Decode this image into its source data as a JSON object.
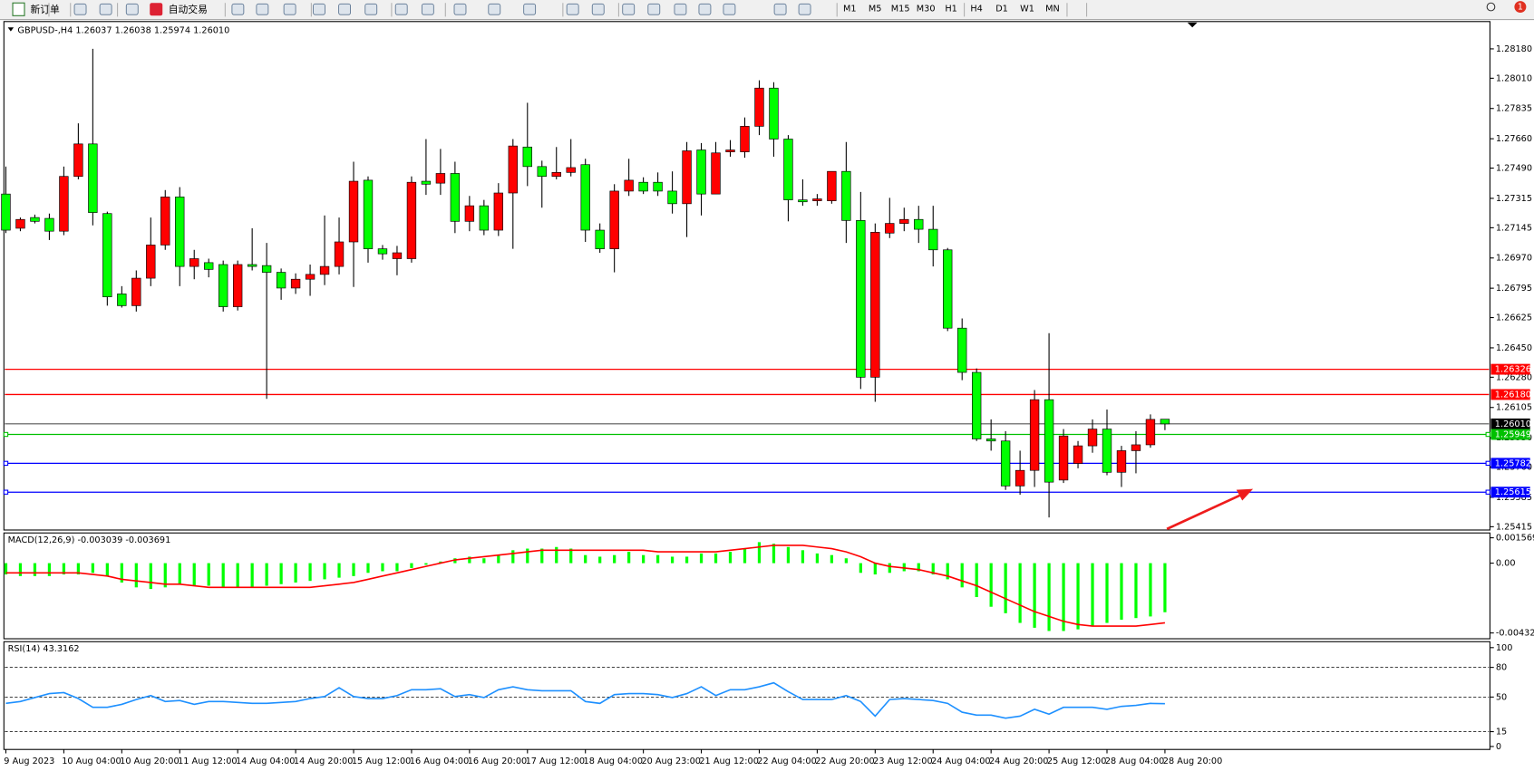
{
  "toolbar": {
    "buttons": [
      "新订单",
      "自动交易"
    ],
    "timeframes": [
      "M1",
      "M5",
      "M15",
      "M30",
      "H1",
      "H4",
      "D1",
      "W1",
      "MN"
    ],
    "badge": "1"
  },
  "chart_data": [
    {
      "type": "candlestick",
      "title": "GBPUSD-,H4  1.26037 1.26038 1.25974 1.26010",
      "categories": [
        "9 Aug 2023",
        null,
        null,
        null,
        "10 Aug 04:00",
        null,
        null,
        null,
        "10 Aug 20:00",
        null,
        null,
        null,
        "11 Aug 12:00",
        null,
        null,
        null,
        "14 Aug 04:00",
        null,
        null,
        null,
        "14 Aug 20:00",
        null,
        null,
        null,
        "15 Aug 12:00",
        null,
        null,
        null,
        "16 Aug 04:00",
        null,
        null,
        null,
        "16 Aug 20:00",
        null,
        null,
        null,
        "17 Aug 12:00",
        null,
        null,
        null,
        "18 Aug 04:00",
        null,
        null,
        null,
        "20 Aug 23:00",
        null,
        null,
        null,
        "21 Aug 12:00",
        null,
        null,
        null,
        "22 Aug 04:00",
        null,
        null,
        null,
        "22 Aug 20:00",
        null,
        null,
        null,
        "23 Aug 12:00",
        null,
        null,
        null,
        "24 Aug 04:00",
        null,
        null,
        null,
        "24 Aug 20:00",
        null,
        null,
        null,
        "25 Aug 12:00",
        null,
        null,
        null,
        "28 Aug 04:00",
        null,
        null,
        null,
        "28 Aug 20:00"
      ],
      "open": [
        1.2734,
        1.27142,
        1.27204,
        1.27199,
        1.27125,
        1.27442,
        1.2763,
        1.27227,
        1.26762,
        1.26694,
        1.26853,
        1.27045,
        1.27323,
        1.26921,
        1.26943,
        1.26932,
        1.26688,
        1.26932,
        1.26926,
        1.26887,
        1.26796,
        1.26847,
        1.26875,
        1.26921,
        1.27063,
        1.2742,
        1.27023,
        1.26966,
        1.26966,
        1.27414,
        1.27403,
        1.27459,
        1.27182,
        1.27272,
        1.27131,
        1.27346,
        1.27612,
        1.27499,
        1.27442,
        1.27465,
        1.2751,
        1.27131,
        1.27023,
        1.27357,
        1.27408,
        1.27408,
        1.27357,
        1.27284,
        1.27595,
        1.2734,
        1.27584,
        1.27584,
        1.27732,
        1.27953,
        1.27658,
        1.27306,
        1.27301,
        1.27301,
        1.27471,
        1.27187,
        1.2628,
        1.27114,
        1.2717,
        1.27193,
        1.27136,
        1.27017,
        1.26564,
        1.26308,
        1.25923,
        1.25911,
        1.25651,
        1.25741,
        1.2615,
        1.25685,
        1.25781,
        1.25883,
        1.2598,
        1.2573,
        1.25855,
        1.25889,
        1.26037
      ],
      "high": [
        1.27499,
        1.27204,
        1.27221,
        1.27227,
        1.27499,
        1.27749,
        1.2818,
        1.27238,
        1.26807,
        1.26898,
        1.27204,
        1.27363,
        1.2738,
        1.27017,
        1.26966,
        1.26955,
        1.26955,
        1.27142,
        1.27057,
        1.26909,
        1.26881,
        1.26932,
        1.27216,
        1.27204,
        1.27527,
        1.27442,
        1.27045,
        1.2704,
        1.27442,
        1.27658,
        1.27601,
        1.27527,
        1.27329,
        1.27306,
        1.27403,
        1.27658,
        1.27868,
        1.27533,
        1.27612,
        1.27658,
        1.27544,
        1.2717,
        1.27397,
        1.27544,
        1.27437,
        1.27465,
        1.27471,
        1.27641,
        1.27635,
        1.27641,
        1.27652,
        1.27783,
        1.27998,
        1.27987,
        1.27681,
        1.27425,
        1.2734,
        1.27471,
        1.27641,
        1.27352,
        1.2717,
        1.27318,
        1.27261,
        1.27272,
        1.27272,
        1.27028,
        1.2662,
        1.26331,
        1.26036,
        1.25968,
        1.25855,
        1.26206,
        1.26535,
        1.2598,
        1.25911,
        1.26036,
        1.26093,
        1.25883,
        1.25968,
        1.26065,
        1.26038
      ],
      "low": [
        1.27114,
        1.27125,
        1.2717,
        1.27074,
        1.27102,
        1.27425,
        1.27159,
        1.26694,
        1.26683,
        1.2666,
        1.26807,
        1.27017,
        1.26807,
        1.26847,
        1.26858,
        1.2666,
        1.26666,
        1.26898,
        1.26155,
        1.26728,
        1.26762,
        1.26751,
        1.26813,
        1.26875,
        1.26802,
        1.26943,
        1.2696,
        1.2687,
        1.26943,
        1.27335,
        1.27335,
        1.27114,
        1.27125,
        1.27102,
        1.27097,
        1.27023,
        1.27386,
        1.27261,
        1.27425,
        1.27442,
        1.27063,
        1.27,
        1.26887,
        1.27329,
        1.2734,
        1.27329,
        1.27227,
        1.27091,
        1.27216,
        1.2734,
        1.27556,
        1.2755,
        1.27681,
        1.27556,
        1.27182,
        1.27272,
        1.27272,
        1.27284,
        1.27057,
        1.26212,
        1.26138,
        1.27085,
        1.27125,
        1.27057,
        1.26921,
        1.26547,
        1.26263,
        1.25911,
        1.25855,
        1.25628,
        1.256,
        1.25645,
        1.25469,
        1.25668,
        1.25753,
        1.25843,
        1.25713,
        1.25645,
        1.25724,
        1.25872,
        1.25974
      ],
      "close": [
        1.27131,
        1.27193,
        1.27182,
        1.27125,
        1.27442,
        1.2763,
        1.27233,
        1.26745,
        1.26694,
        1.26853,
        1.27045,
        1.27323,
        1.26921,
        1.26966,
        1.26904,
        1.26688,
        1.26932,
        1.26921,
        1.26887,
        1.26796,
        1.26847,
        1.26875,
        1.26921,
        1.27063,
        1.27414,
        1.27023,
        1.26994,
        1.27,
        1.27408,
        1.27397,
        1.27459,
        1.27182,
        1.27272,
        1.27131,
        1.27346,
        1.27618,
        1.27499,
        1.27442,
        1.27465,
        1.27493,
        1.27131,
        1.27023,
        1.27357,
        1.2742,
        1.27357,
        1.27357,
        1.27284,
        1.2759,
        1.2734,
        1.27578,
        1.27595,
        1.27732,
        1.27953,
        1.27658,
        1.27306,
        1.27295,
        1.27312,
        1.27471,
        1.27187,
        1.2628,
        1.27119,
        1.2717,
        1.27193,
        1.27136,
        1.27017,
        1.26564,
        1.26308,
        1.25923,
        1.25911,
        1.25651,
        1.25741,
        1.2615,
        1.25673,
        1.2594,
        1.25883,
        1.2598,
        1.2573,
        1.25855,
        1.25889,
        1.26036,
        1.2601
      ],
      "up_color": "#ff0000",
      "down_color": "#00ff00",
      "ylim": [
        1.25396,
        1.28338
      ],
      "yticks": [
        {
          "value": 1.2818,
          "label": "1.28180"
        },
        {
          "value": 1.2801,
          "label": "1.28010"
        },
        1.27835,
        {
          "value": 1.2766,
          "label": "1.27660"
        },
        {
          "value": 1.2749,
          "label": "1.27490"
        },
        1.27315,
        1.27145,
        {
          "value": 1.2697,
          "label": "1.26970"
        },
        1.26795,
        1.26625,
        {
          "value": 1.2645,
          "label": "1.26450"
        },
        {
          "value": 1.2628,
          "label": "1.26280"
        },
        1.26105,
        {
          "value": 1.2593,
          "label": "1.25930"
        },
        {
          "value": 1.2576,
          "label": "1.25760"
        },
        1.25585,
        1.25415
      ],
      "levels": [
        {
          "value": 1.26326,
          "color": "#ff0000"
        },
        {
          "value": 1.2618,
          "label": "1.26180",
          "color": "#ff0000"
        },
        {
          "value": 1.2601,
          "label": "1.26010",
          "color": "#000000"
        },
        {
          "value": 1.25949,
          "color": "#00c000"
        },
        {
          "value": 1.25782,
          "color": "#0000ff"
        },
        {
          "value": 1.25615,
          "color": "#0000ff"
        }
      ]
    },
    {
      "type": "macd",
      "title": "MACD(12,26,9) -0.003039 -0.003691",
      "values": [
        -0.0007,
        -0.0008,
        -0.0008,
        -0.0008,
        -0.0007,
        -0.0007,
        -0.0006,
        -0.0008,
        -0.0012,
        -0.0015,
        -0.0016,
        -0.0015,
        -0.0013,
        -0.0014,
        -0.0014,
        -0.0015,
        -0.0015,
        -0.0015,
        -0.0014,
        -0.0013,
        -0.0012,
        -0.0011,
        -0.001,
        -0.0009,
        -0.0008,
        -0.0006,
        -0.0005,
        -0.0005,
        -0.0003,
        -0.0001,
        0.0001,
        0.0003,
        0.0004,
        0.0003,
        0.0005,
        0.0008,
        0.0009,
        0.0009,
        0.001,
        0.0009,
        0.0005,
        0.0004,
        0.0005,
        0.0007,
        0.0005,
        0.0005,
        0.0004,
        0.0004,
        0.0006,
        0.0006,
        0.0007,
        0.0009,
        0.0013,
        0.0012,
        0.001,
        0.0008,
        0.0006,
        0.0005,
        0.0003,
        -0.0006,
        -0.0007,
        -0.0006,
        -0.0005,
        -0.0005,
        -0.0007,
        -0.001,
        -0.0015,
        -0.0021,
        -0.0027,
        -0.0031,
        -0.0037,
        -0.004,
        -0.0042,
        -0.0042,
        -0.0041,
        -0.0039,
        -0.0037,
        -0.0035,
        -0.0034,
        -0.0033,
        -0.003039
      ],
      "color": "#00ff00",
      "signal_values": [
        -0.0006,
        -0.0006,
        -0.0006,
        -0.0006,
        -0.0006,
        -0.0006,
        -0.0007,
        -0.0008,
        -0.001,
        -0.0011,
        -0.0012,
        -0.0013,
        -0.0013,
        -0.0014,
        -0.0015,
        -0.0015,
        -0.0015,
        -0.0015,
        -0.0015,
        -0.0015,
        -0.0015,
        -0.0015,
        -0.0014,
        -0.0013,
        -0.0012,
        -0.001,
        -0.0008,
        -0.0006,
        -0.0004,
        -0.0002,
        0,
        0.0002,
        0.0003,
        0.0004,
        0.0005,
        0.0006,
        0.0007,
        0.0008,
        0.0008,
        0.0008,
        0.0008,
        0.0008,
        0.0008,
        0.0008,
        0.0008,
        0.0007,
        0.0007,
        0.0007,
        0.0007,
        0.0007,
        0.0008,
        0.0009,
        0.001,
        0.0011,
        0.0011,
        0.0011,
        0.001,
        0.0009,
        0.0007,
        0.0004,
        0,
        -0.0002,
        -0.0003,
        -0.0004,
        -0.0006,
        -0.0008,
        -0.0011,
        -0.0014,
        -0.0018,
        -0.0022,
        -0.0026,
        -0.003,
        -0.0033,
        -0.0036,
        -0.0038,
        -0.0039,
        -0.0039,
        -0.0039,
        -0.0039,
        -0.0038,
        -0.003691
      ],
      "signal_color": "#ff0000",
      "ylim": [
        -0.00468,
        0.00187
      ],
      "yticks": [
        0.001569,
        {
          "value": 0,
          "label": "0.00"
        },
        -0.004322
      ]
    },
    {
      "type": "line",
      "title": "RSI(14) 43.3162",
      "values": [
        43.6,
        45.5,
        49.5,
        53.5,
        54.5,
        48.5,
        39.6,
        39.6,
        42.6,
        47.5,
        51.5,
        45.5,
        46.5,
        42.6,
        45.5,
        45.5,
        44.6,
        43.6,
        43.6,
        44.6,
        45.5,
        48.5,
        50.5,
        59.4,
        50.5,
        48.5,
        48.5,
        51.5,
        57.4,
        57.4,
        58.4,
        50.5,
        52.5,
        49.5,
        57.4,
        60.4,
        57.4,
        56.4,
        56.4,
        56.4,
        45.5,
        43.6,
        52.5,
        53.5,
        53.5,
        52.5,
        49.5,
        53.5,
        60.4,
        51.5,
        57.4,
        57.4,
        60.4,
        64.4,
        55.4,
        47.5,
        47.5,
        47.5,
        51.5,
        45.5,
        30.7,
        47.5,
        48.5,
        47.5,
        46.5,
        43.6,
        34.7,
        31.7,
        31.7,
        28.7,
        30.7,
        37.6,
        32.7,
        39.6,
        39.6,
        39.6,
        37.6,
        40.6,
        41.6,
        43.6,
        43.3162
      ],
      "color": "#1e90ff",
      "ylim": [
        -3,
        106
      ],
      "yticks": [
        100,
        80,
        50,
        15,
        0
      ],
      "levels": [
        80,
        50,
        15
      ]
    }
  ]
}
